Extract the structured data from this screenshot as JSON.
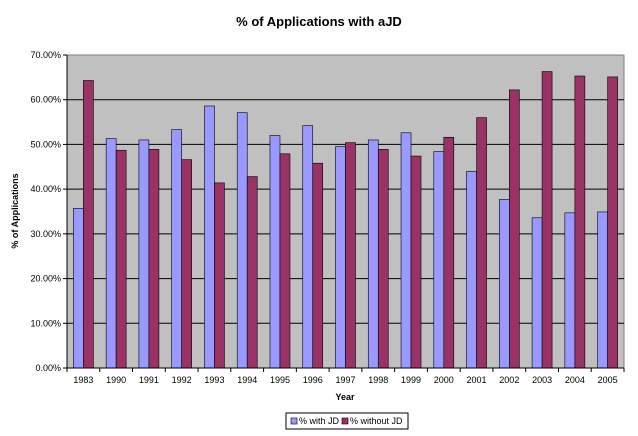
{
  "chart_data": {
    "type": "bar",
    "title": "% of Applications with aJD",
    "xlabel": "Year",
    "ylabel": "% of Applications",
    "ylim": [
      0,
      70
    ],
    "y_tick_step": 10,
    "y_tick_format": "percent_2dp",
    "y_ticks": [
      "0.00%",
      "10.00%",
      "20.00%",
      "30.00%",
      "40.00%",
      "50.00%",
      "60.00%",
      "70.00%"
    ],
    "grid": true,
    "legend_position": "bottom",
    "plot_background": "#c0c0c0",
    "categories": [
      "1983",
      "1990",
      "1991",
      "1992",
      "1993",
      "1994",
      "1995",
      "1996",
      "1997",
      "1998",
      "1999",
      "2000",
      "2001",
      "2002",
      "2003",
      "2004",
      "2005"
    ],
    "series": [
      {
        "name": "% with JD",
        "color": "#9999ff",
        "values": [
          35.7,
          51.3,
          51.0,
          53.3,
          58.6,
          57.1,
          52.0,
          54.2,
          49.5,
          51.0,
          52.6,
          48.4,
          44.0,
          37.7,
          33.6,
          34.7,
          34.9
        ]
      },
      {
        "name": "% without JD",
        "color": "#993366",
        "values": [
          64.3,
          48.7,
          48.9,
          46.6,
          41.4,
          42.8,
          47.9,
          45.8,
          50.4,
          48.9,
          47.4,
          51.6,
          56.0,
          62.2,
          66.3,
          65.3,
          65.1
        ]
      }
    ]
  }
}
